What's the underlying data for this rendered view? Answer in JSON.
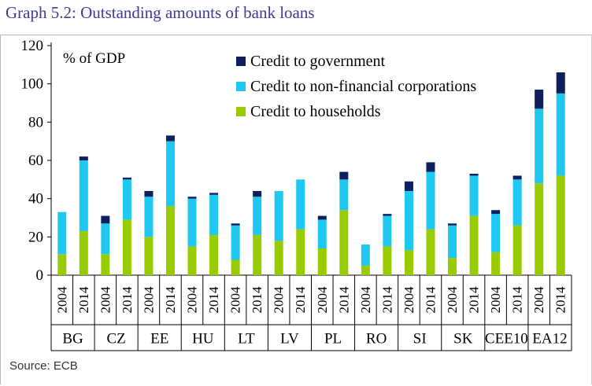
{
  "title": "Graph 5.2: Outstanding amounts of bank loans",
  "source": "Source: ECB",
  "chart_data": {
    "type": "bar",
    "stacked": true,
    "ylabel": "% of GDP",
    "ylim": [
      0,
      120
    ],
    "yticks": [
      0,
      20,
      40,
      60,
      80,
      100,
      120
    ],
    "grid": false,
    "legend_position": "top-right",
    "groups": [
      "BG",
      "CZ",
      "EE",
      "HU",
      "LT",
      "LV",
      "PL",
      "RO",
      "SI",
      "SK",
      "CEE10",
      "EA12"
    ],
    "years": [
      "2004",
      "2014"
    ],
    "categories": [
      "BG 2004",
      "BG 2014",
      "CZ 2004",
      "CZ 2014",
      "EE 2004",
      "EE 2014",
      "HU 2004",
      "HU 2014",
      "LT 2004",
      "LT 2014",
      "LV 2004",
      "LV 2014",
      "PL 2004",
      "PL 2014",
      "RO 2004",
      "RO 2014",
      "SI 2004",
      "SI 2014",
      "SK 2004",
      "SK 2014",
      "CEE10 2004",
      "CEE10 2014",
      "EA12 2004",
      "EA12 2014"
    ],
    "series": [
      {
        "name": "Credit to households",
        "color": "#99cc00",
        "values": [
          11,
          23,
          11,
          29,
          20,
          36,
          15,
          21,
          8,
          21,
          18,
          24,
          14,
          34,
          5,
          15,
          13,
          24,
          9,
          31,
          12,
          26,
          48,
          52
        ]
      },
      {
        "name": "Credit to non-financial corporations",
        "color": "#1ec8f0",
        "values": [
          22,
          37,
          16,
          21,
          21,
          34,
          25,
          21,
          18,
          20,
          26,
          26,
          15,
          16,
          11,
          16,
          31,
          30,
          17,
          21,
          20,
          24,
          39,
          43
        ]
      },
      {
        "name": "Credit to government",
        "color": "#0d1f5c",
        "values": [
          0,
          2,
          4,
          1,
          3,
          3,
          1,
          1,
          1,
          3,
          0,
          0,
          2,
          4,
          0,
          1,
          5,
          5,
          1,
          1,
          2,
          2,
          10,
          11
        ]
      }
    ]
  }
}
